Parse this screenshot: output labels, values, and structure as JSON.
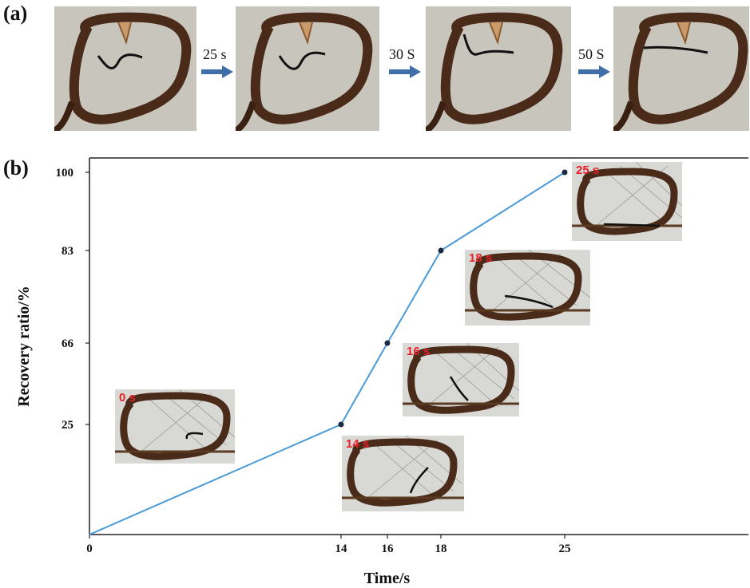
{
  "panel_a": {
    "label": "(a)",
    "steps": [
      "25 s",
      "30 S",
      "50 S"
    ],
    "photos": [
      "photo-1",
      "photo-2",
      "photo-3",
      "photo-4"
    ]
  },
  "panel_b": {
    "label": "(b)"
  },
  "chart_data": {
    "type": "line",
    "xlabel": "Time/s",
    "ylabel": "Recovery  ratio/%",
    "x": [
      0,
      14,
      16,
      18,
      25
    ],
    "y": [
      0,
      25,
      66,
      83,
      100
    ],
    "x_ticks": [
      "0",
      "14",
      "16",
      "18",
      "25"
    ],
    "y_ticks": [
      "25",
      "66",
      "83",
      "100"
    ],
    "y_tick_values": [
      25,
      66,
      83,
      100
    ],
    "insets": [
      {
        "label": "0 s"
      },
      {
        "label": "14 s"
      },
      {
        "label": "16 s"
      },
      {
        "label": "18 s"
      },
      {
        "label": "25 s"
      }
    ],
    "line_color": "#4a9ad8",
    "marker_color": "#1a2a40",
    "grid": false
  }
}
